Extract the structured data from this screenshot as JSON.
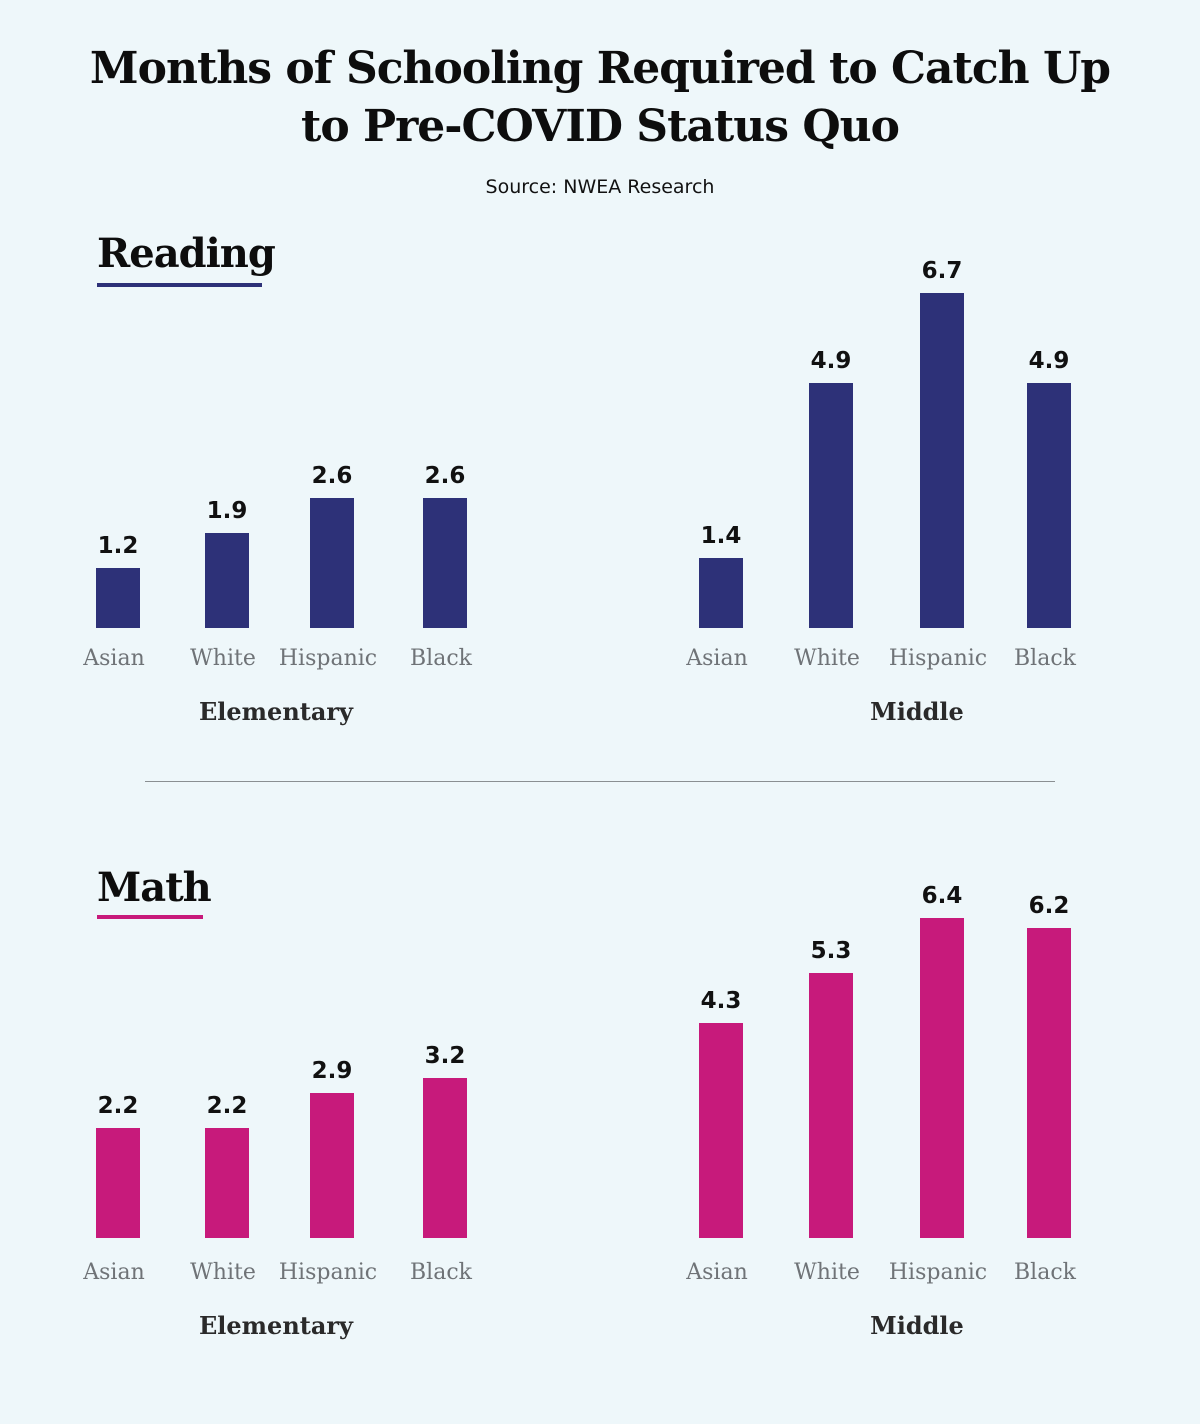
{
  "header": {
    "title_line1": "Months of Schooling Required to Catch Up",
    "title_line2": "to Pre-COVID Status Quo",
    "source": "Source: NWEA Research"
  },
  "colors": {
    "background": "#EEF7FA",
    "reading": "#2D3178",
    "math": "#C71A7B"
  },
  "sections": {
    "reading": {
      "label": "Reading"
    },
    "math": {
      "label": "Math"
    }
  },
  "chart_data": [
    {
      "type": "bar",
      "subject": "Reading",
      "group": "Elementary",
      "categories": [
        "Asian",
        "White",
        "Hispanic",
        "Black"
      ],
      "values": [
        1.2,
        1.9,
        2.6,
        2.6
      ],
      "color": "#2D3178"
    },
    {
      "type": "bar",
      "subject": "Reading",
      "group": "Middle",
      "categories": [
        "Asian",
        "White",
        "Hispanic",
        "Black"
      ],
      "values": [
        1.4,
        4.9,
        6.7,
        4.9
      ],
      "color": "#2D3178"
    },
    {
      "type": "bar",
      "subject": "Math",
      "group": "Elementary",
      "categories": [
        "Asian",
        "White",
        "Hispanic",
        "Black"
      ],
      "values": [
        2.2,
        2.2,
        2.9,
        3.2
      ],
      "color": "#C71A7B"
    },
    {
      "type": "bar",
      "subject": "Math",
      "group": "Middle",
      "categories": [
        "Asian",
        "White",
        "Hispanic",
        "Black"
      ],
      "values": [
        4.3,
        5.3,
        6.4,
        6.2
      ],
      "color": "#C71A7B"
    }
  ]
}
